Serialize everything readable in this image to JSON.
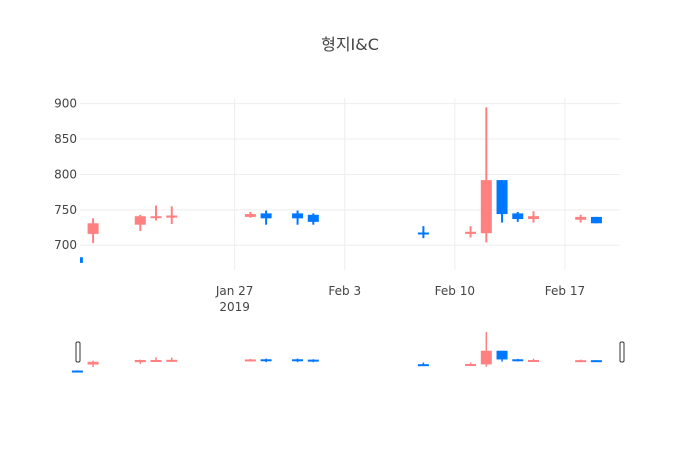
{
  "chart_data": {
    "type": "candlestick",
    "title": "형지I&C",
    "xlabel": "",
    "ylabel": "",
    "ylim": [
      665,
      908
    ],
    "xlim": [
      "2019-01-17T04:00",
      "2019-02-20T12:00"
    ],
    "yticks": [
      700,
      750,
      800,
      850,
      900
    ],
    "xticks": [
      {
        "date": "2019-01-27",
        "label": "Jan 27",
        "sublabel": "2019"
      },
      {
        "date": "2019-02-03",
        "label": "Feb 3",
        "sublabel": ""
      },
      {
        "date": "2019-02-10",
        "label": "Feb 10",
        "sublabel": ""
      },
      {
        "date": "2019-02-17",
        "label": "Feb 17",
        "sublabel": ""
      }
    ],
    "colors": {
      "increasing": "#ff8080",
      "decreasing": "#0077ff"
    },
    "grid": true,
    "rangeslider": true,
    "candles": [
      {
        "date": "2019-01-17",
        "open": 683,
        "high": 684,
        "low": 675,
        "close": 675
      },
      {
        "date": "2019-01-18",
        "open": 716,
        "high": 738,
        "low": 703,
        "close": 731
      },
      {
        "date": "2019-01-21",
        "open": 729,
        "high": 743,
        "low": 720,
        "close": 741
      },
      {
        "date": "2019-01-22",
        "open": 739,
        "high": 756,
        "low": 735,
        "close": 741
      },
      {
        "date": "2019-01-23",
        "open": 739,
        "high": 755,
        "low": 730,
        "close": 742
      },
      {
        "date": "2019-01-28",
        "open": 740,
        "high": 747,
        "low": 739,
        "close": 744
      },
      {
        "date": "2019-01-29",
        "open": 745,
        "high": 749,
        "low": 729,
        "close": 738
      },
      {
        "date": "2019-01-31",
        "open": 745,
        "high": 749,
        "low": 729,
        "close": 738
      },
      {
        "date": "2019-02-01",
        "open": 743,
        "high": 745,
        "low": 729,
        "close": 733
      },
      {
        "date": "2019-02-08",
        "open": 718,
        "high": 727,
        "low": 710,
        "close": 717
      },
      {
        "date": "2019-02-11",
        "open": 716,
        "high": 727,
        "low": 711,
        "close": 719
      },
      {
        "date": "2019-02-12",
        "open": 717,
        "high": 895,
        "low": 704,
        "close": 792
      },
      {
        "date": "2019-02-13",
        "open": 792,
        "high": 792,
        "low": 732,
        "close": 744
      },
      {
        "date": "2019-02-14",
        "open": 745,
        "high": 747,
        "low": 733,
        "close": 737
      },
      {
        "date": "2019-02-15",
        "open": 737,
        "high": 748,
        "low": 732,
        "close": 741
      },
      {
        "date": "2019-02-18",
        "open": 736,
        "high": 743,
        "low": 732,
        "close": 740
      },
      {
        "date": "2019-02-19",
        "open": 740,
        "high": 740,
        "low": 731,
        "close": 731
      }
    ]
  }
}
